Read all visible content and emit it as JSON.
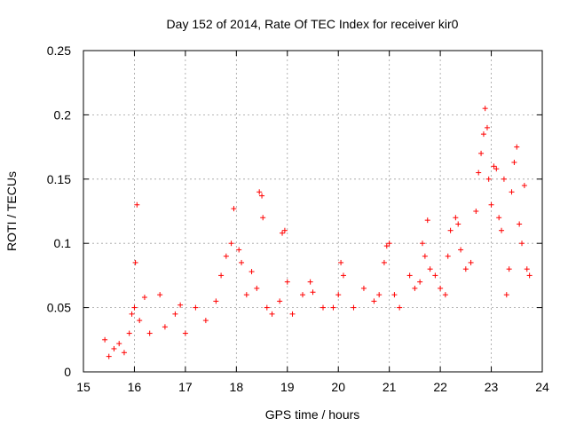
{
  "chart_data": {
    "type": "scatter",
    "title": "Day 152 of 2014, Rate Of TEC Index for receiver kir0",
    "xlabel": "GPS time / hours",
    "ylabel": "ROTI / TECUs",
    "xlim": [
      15,
      24
    ],
    "ylim": [
      0,
      0.25
    ],
    "xticks": [
      "15",
      "16",
      "17",
      "18",
      "19",
      "20",
      "21",
      "22",
      "23",
      "24"
    ],
    "yticks": [
      "0",
      "0.05",
      "0.1",
      "0.15",
      "0.2",
      "0.25"
    ],
    "grid": true,
    "marker": "plus",
    "series_color": "#ff0000",
    "series": [
      {
        "name": "kir0",
        "points": [
          [
            15.42,
            0.025
          ],
          [
            15.5,
            0.012
          ],
          [
            15.6,
            0.018
          ],
          [
            15.7,
            0.022
          ],
          [
            15.8,
            0.015
          ],
          [
            15.9,
            0.03
          ],
          [
            15.95,
            0.045
          ],
          [
            16.0,
            0.05
          ],
          [
            16.02,
            0.085
          ],
          [
            16.05,
            0.13
          ],
          [
            16.1,
            0.04
          ],
          [
            16.2,
            0.058
          ],
          [
            16.3,
            0.03
          ],
          [
            16.5,
            0.06
          ],
          [
            16.6,
            0.035
          ],
          [
            16.8,
            0.045
          ],
          [
            16.9,
            0.052
          ],
          [
            17.0,
            0.03
          ],
          [
            17.2,
            0.05
          ],
          [
            17.4,
            0.04
          ],
          [
            17.6,
            0.055
          ],
          [
            17.7,
            0.075
          ],
          [
            17.8,
            0.09
          ],
          [
            17.9,
            0.1
          ],
          [
            17.95,
            0.127
          ],
          [
            18.05,
            0.095
          ],
          [
            18.1,
            0.085
          ],
          [
            18.2,
            0.06
          ],
          [
            18.3,
            0.078
          ],
          [
            18.4,
            0.065
          ],
          [
            18.45,
            0.14
          ],
          [
            18.5,
            0.137
          ],
          [
            18.52,
            0.12
          ],
          [
            18.6,
            0.05
          ],
          [
            18.7,
            0.045
          ],
          [
            18.85,
            0.055
          ],
          [
            18.9,
            0.108
          ],
          [
            18.95,
            0.11
          ],
          [
            19.0,
            0.07
          ],
          [
            19.1,
            0.045
          ],
          [
            19.3,
            0.06
          ],
          [
            19.45,
            0.07
          ],
          [
            19.5,
            0.062
          ],
          [
            19.7,
            0.05
          ],
          [
            19.9,
            0.05
          ],
          [
            20.0,
            0.06
          ],
          [
            20.05,
            0.085
          ],
          [
            20.1,
            0.075
          ],
          [
            20.3,
            0.05
          ],
          [
            20.5,
            0.065
          ],
          [
            20.7,
            0.055
          ],
          [
            20.8,
            0.06
          ],
          [
            20.9,
            0.085
          ],
          [
            20.95,
            0.098
          ],
          [
            21.0,
            0.1
          ],
          [
            21.1,
            0.06
          ],
          [
            21.2,
            0.05
          ],
          [
            21.4,
            0.075
          ],
          [
            21.5,
            0.065
          ],
          [
            21.6,
            0.07
          ],
          [
            21.65,
            0.1
          ],
          [
            21.7,
            0.09
          ],
          [
            21.75,
            0.118
          ],
          [
            21.8,
            0.08
          ],
          [
            21.9,
            0.075
          ],
          [
            22.0,
            0.065
          ],
          [
            22.1,
            0.06
          ],
          [
            22.15,
            0.09
          ],
          [
            22.2,
            0.11
          ],
          [
            22.3,
            0.12
          ],
          [
            22.35,
            0.115
          ],
          [
            22.4,
            0.095
          ],
          [
            22.5,
            0.08
          ],
          [
            22.6,
            0.085
          ],
          [
            22.7,
            0.125
          ],
          [
            22.75,
            0.155
          ],
          [
            22.8,
            0.17
          ],
          [
            22.85,
            0.185
          ],
          [
            22.88,
            0.205
          ],
          [
            22.92,
            0.19
          ],
          [
            22.95,
            0.15
          ],
          [
            23.0,
            0.13
          ],
          [
            23.05,
            0.16
          ],
          [
            23.1,
            0.158
          ],
          [
            23.15,
            0.12
          ],
          [
            23.2,
            0.11
          ],
          [
            23.25,
            0.15
          ],
          [
            23.3,
            0.06
          ],
          [
            23.35,
            0.08
          ],
          [
            23.4,
            0.14
          ],
          [
            23.45,
            0.163
          ],
          [
            23.5,
            0.175
          ],
          [
            23.55,
            0.115
          ],
          [
            23.6,
            0.1
          ],
          [
            23.65,
            0.145
          ],
          [
            23.7,
            0.08
          ],
          [
            23.75,
            0.075
          ]
        ]
      }
    ]
  }
}
